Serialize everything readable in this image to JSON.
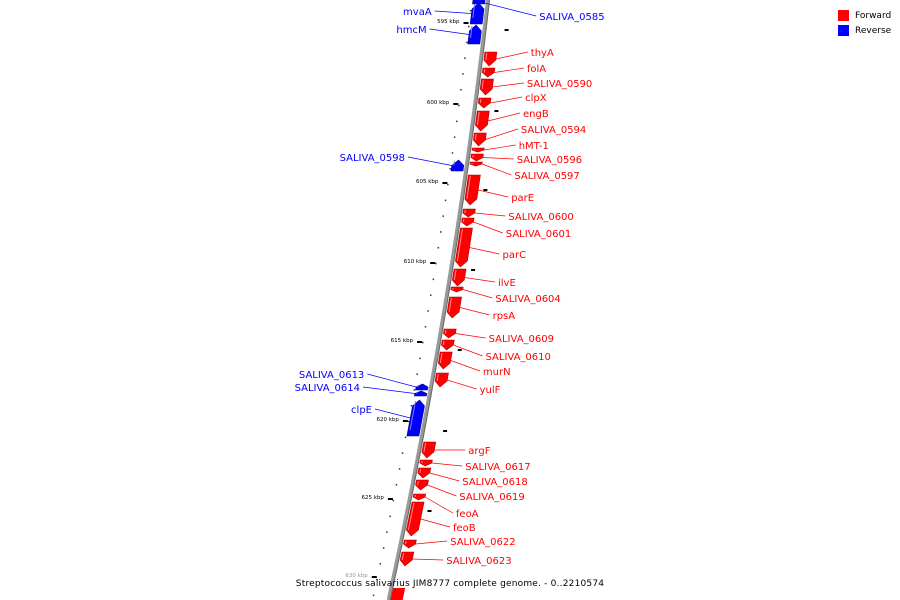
{
  "colors": {
    "forward": "#ff0000",
    "reverse": "#0000ff"
  },
  "legend": [
    {
      "label": "Forward",
      "color": "#ff0000"
    },
    {
      "label": "Reverse",
      "color": "#0000ff"
    }
  ],
  "caption": "Streptococcus salivarius JIM8777 complete genome. - 0..2210574",
  "ticks": [
    {
      "label": "595 kbp"
    },
    {
      "label": "600 kbp"
    },
    {
      "label": "605 kbp"
    },
    {
      "label": "610 kbp"
    },
    {
      "label": "615 kbp"
    },
    {
      "label": "620 kbp"
    },
    {
      "label": "625 kbp"
    },
    {
      "label": "630 kbp"
    }
  ],
  "genes": [
    {
      "name": "mvaA",
      "strand": "reverse"
    },
    {
      "name": "hmcM",
      "strand": "reverse"
    },
    {
      "name": "SALIVA_0585",
      "strand": "reverse"
    },
    {
      "name": "thyA",
      "strand": "forward"
    },
    {
      "name": "folA",
      "strand": "forward"
    },
    {
      "name": "SALIVA_0590",
      "strand": "forward"
    },
    {
      "name": "clpX",
      "strand": "forward"
    },
    {
      "name": "engB",
      "strand": "forward"
    },
    {
      "name": "SALIVA_0594",
      "strand": "forward"
    },
    {
      "name": "hMT-1",
      "strand": "forward"
    },
    {
      "name": "SALIVA_0596",
      "strand": "forward"
    },
    {
      "name": "SALIVA_0597",
      "strand": "forward"
    },
    {
      "name": "SALIVA_0598",
      "strand": "reverse"
    },
    {
      "name": "parE",
      "strand": "forward"
    },
    {
      "name": "SALIVA_0600",
      "strand": "forward"
    },
    {
      "name": "SALIVA_0601",
      "strand": "forward"
    },
    {
      "name": "parC",
      "strand": "forward"
    },
    {
      "name": "ilvE",
      "strand": "forward"
    },
    {
      "name": "SALIVA_0604",
      "strand": "forward"
    },
    {
      "name": "rpsA",
      "strand": "forward"
    },
    {
      "name": "SALIVA_0609",
      "strand": "forward"
    },
    {
      "name": "SALIVA_0610",
      "strand": "forward"
    },
    {
      "name": "murN",
      "strand": "forward"
    },
    {
      "name": "yulF",
      "strand": "forward"
    },
    {
      "name": "SALIVA_0613",
      "strand": "reverse"
    },
    {
      "name": "SALIVA_0614",
      "strand": "reverse"
    },
    {
      "name": "clpE",
      "strand": "reverse"
    },
    {
      "name": "argF",
      "strand": "forward"
    },
    {
      "name": "SALIVA_0617",
      "strand": "forward"
    },
    {
      "name": "SALIVA_0618",
      "strand": "forward"
    },
    {
      "name": "SALIVA_0619",
      "strand": "forward"
    },
    {
      "name": "feoA",
      "strand": "forward"
    },
    {
      "name": "feoB",
      "strand": "forward"
    },
    {
      "name": "SALIVA_0622",
      "strand": "forward"
    },
    {
      "name": "SALIVA_0623",
      "strand": "forward"
    }
  ]
}
